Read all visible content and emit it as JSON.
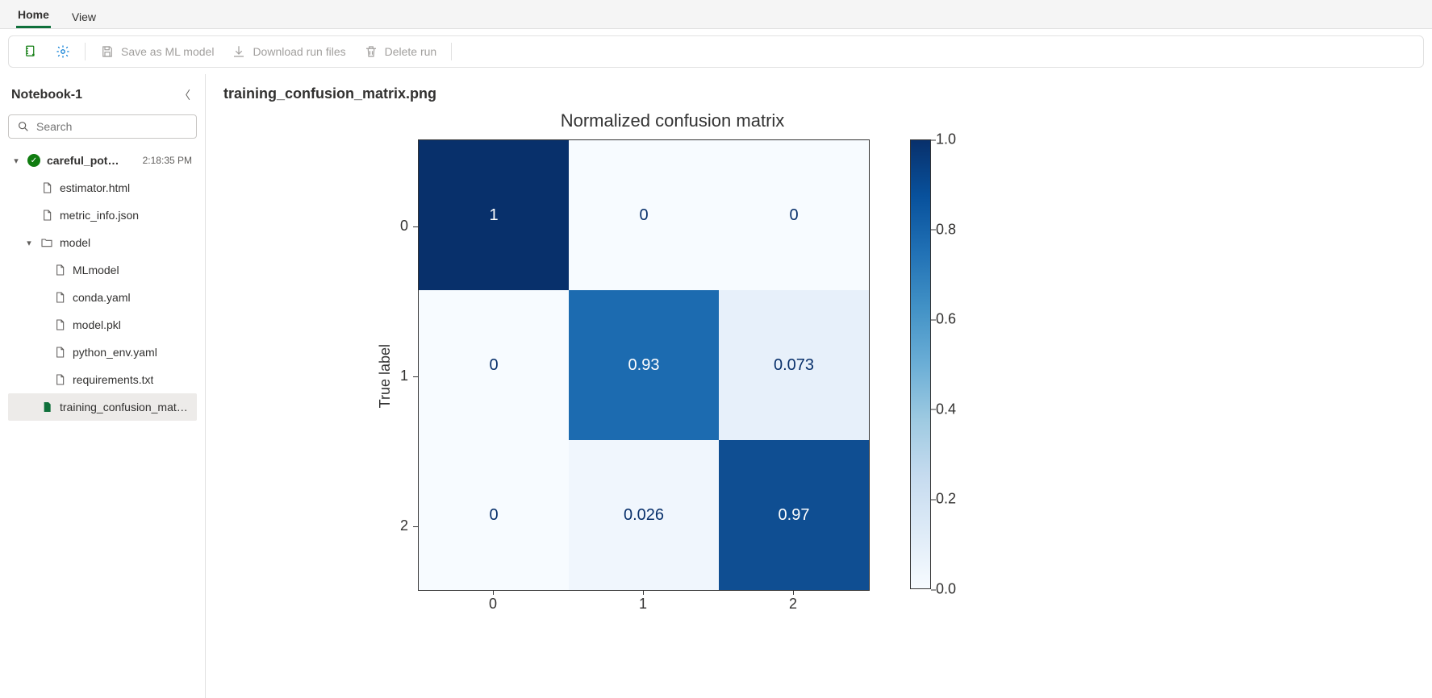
{
  "tabs": {
    "home": "Home",
    "view": "View",
    "active": "home"
  },
  "toolbar": {
    "save_model": "Save as ML model",
    "download_files": "Download run files",
    "delete_run": "Delete run"
  },
  "sidebar": {
    "title": "Notebook-1",
    "search_placeholder": "Search",
    "run": {
      "name": "careful_pot…",
      "time": "2:18:35 PM"
    },
    "files": {
      "estimator": "estimator.html",
      "metric_info": "metric_info.json",
      "model_folder": "model",
      "mlmodel": "MLmodel",
      "conda": "conda.yaml",
      "modelpkl": "model.pkl",
      "pyenv": "python_env.yaml",
      "reqs": "requirements.txt",
      "confmat": "training_confusion_mat…"
    }
  },
  "main": {
    "filename": "training_confusion_matrix.png"
  },
  "chart": {
    "type": "heatmap",
    "title": "Normalized confusion matrix",
    "ylabel": "True label",
    "xticks": [
      "0",
      "1",
      "2"
    ],
    "yticks": [
      "0",
      "1",
      "2"
    ],
    "cells": [
      [
        {
          "v": "1",
          "bg": "#08306b",
          "fg": "#ffffff"
        },
        {
          "v": "0",
          "bg": "#f7fbff",
          "fg": "#08306b"
        },
        {
          "v": "0",
          "bg": "#f7fbff",
          "fg": "#08306b"
        }
      ],
      [
        {
          "v": "0",
          "bg": "#f7fbff",
          "fg": "#08306b"
        },
        {
          "v": "0.93",
          "bg": "#1c6bb0",
          "fg": "#ffffff"
        },
        {
          "v": "0.073",
          "bg": "#e7f0fa",
          "fg": "#08306b"
        }
      ],
      [
        {
          "v": "0",
          "bg": "#f7fbff",
          "fg": "#08306b"
        },
        {
          "v": "0.026",
          "bg": "#f0f6fd",
          "fg": "#08306b"
        },
        {
          "v": "0.97",
          "bg": "#0f4e92",
          "fg": "#ffffff"
        }
      ]
    ],
    "colorbar": {
      "ticks": [
        {
          "label": "1.0",
          "pos": 0
        },
        {
          "label": "0.8",
          "pos": 0.2
        },
        {
          "label": "0.6",
          "pos": 0.4
        },
        {
          "label": "0.4",
          "pos": 0.6
        },
        {
          "label": "0.2",
          "pos": 0.8
        },
        {
          "label": "0.0",
          "pos": 1.0
        }
      ]
    },
    "title_fontsize": 22,
    "label_fontsize": 18,
    "cell_fontsize": 20,
    "border_color": "#333333"
  }
}
